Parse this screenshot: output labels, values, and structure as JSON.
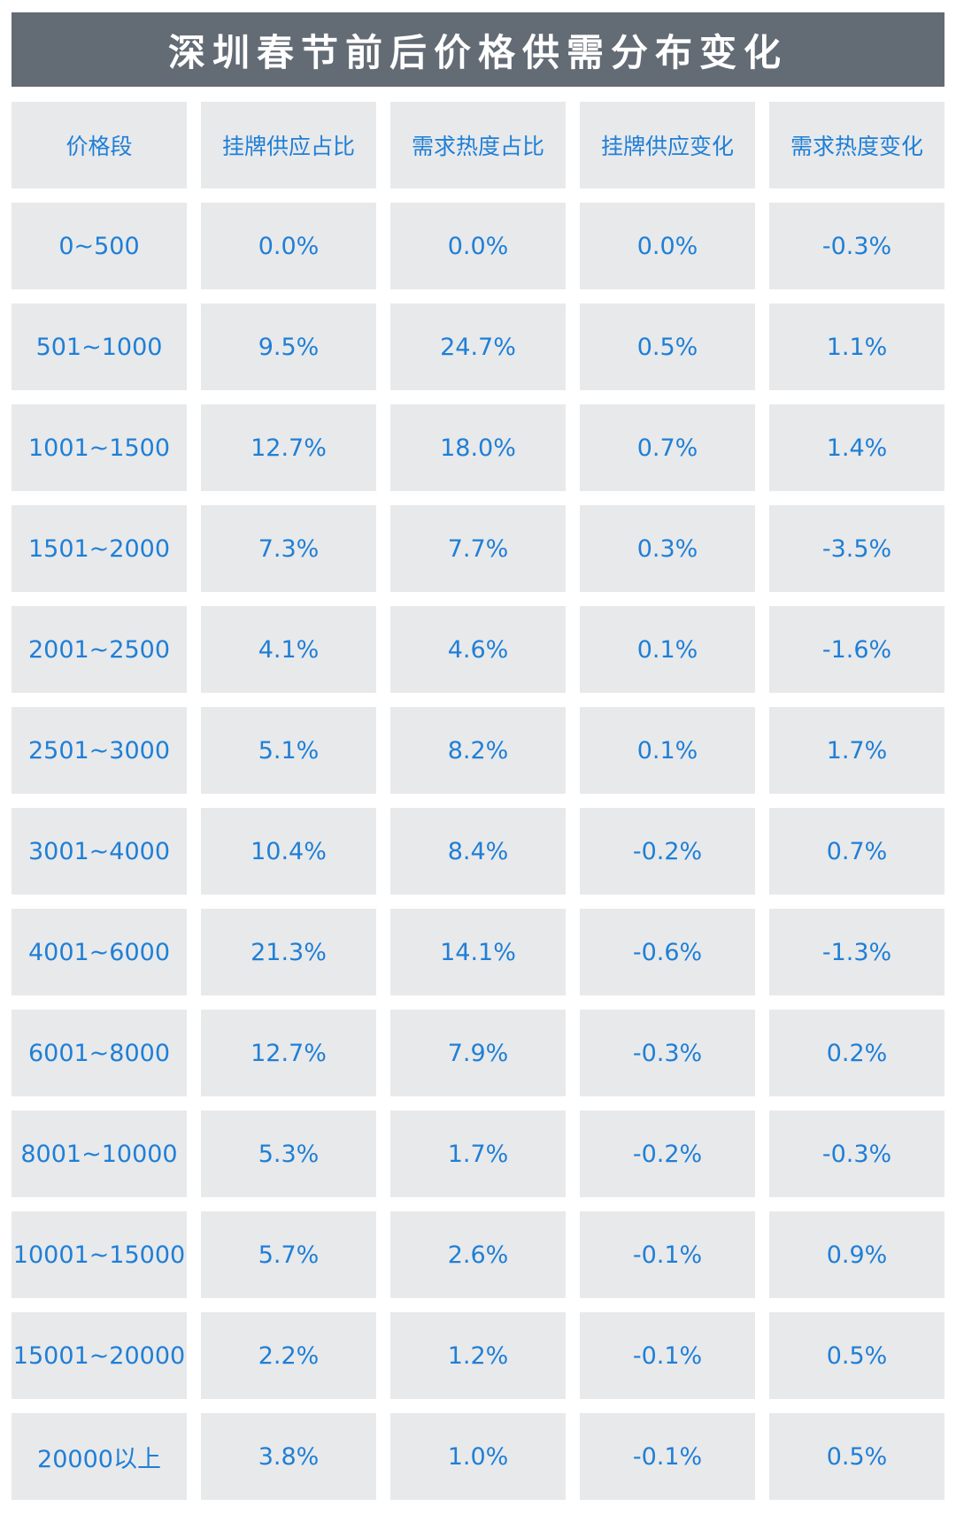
{
  "title": "深圳春节前后价格供需分布变化",
  "chart_data": {
    "type": "table",
    "title": "深圳春节前后价格供需分布变化",
    "columns": [
      "价格段",
      "挂牌供应占比",
      "需求热度占比",
      "挂牌供应变化",
      "需求热度变化"
    ],
    "rows": [
      [
        "0~500",
        "0.0%",
        "0.0%",
        "0.0%",
        "-0.3%"
      ],
      [
        "501~1000",
        "9.5%",
        "24.7%",
        "0.5%",
        "1.1%"
      ],
      [
        "1001~1500",
        "12.7%",
        "18.0%",
        "0.7%",
        "1.4%"
      ],
      [
        "1501~2000",
        "7.3%",
        "7.7%",
        "0.3%",
        "-3.5%"
      ],
      [
        "2001~2500",
        "4.1%",
        "4.6%",
        "0.1%",
        "-1.6%"
      ],
      [
        "2501~3000",
        "5.1%",
        "8.2%",
        "0.1%",
        "1.7%"
      ],
      [
        "3001~4000",
        "10.4%",
        "8.4%",
        "-0.2%",
        "0.7%"
      ],
      [
        "4001~6000",
        "21.3%",
        "14.1%",
        "-0.6%",
        "-1.3%"
      ],
      [
        "6001~8000",
        "12.7%",
        "7.9%",
        "-0.3%",
        "0.2%"
      ],
      [
        "8001~10000",
        "5.3%",
        "1.7%",
        "-0.2%",
        "-0.3%"
      ],
      [
        "10001~15000",
        "5.7%",
        "2.6%",
        "-0.1%",
        "0.9%"
      ],
      [
        "15001~20000",
        "2.2%",
        "1.2%",
        "-0.1%",
        "0.5%"
      ],
      [
        "20000以上",
        "3.8%",
        "1.0%",
        "-0.1%",
        "0.5%"
      ]
    ]
  },
  "colors": {
    "title_bg": "#636b75",
    "cell_bg": "#e8e9eb",
    "text": "#1f7fd6"
  }
}
